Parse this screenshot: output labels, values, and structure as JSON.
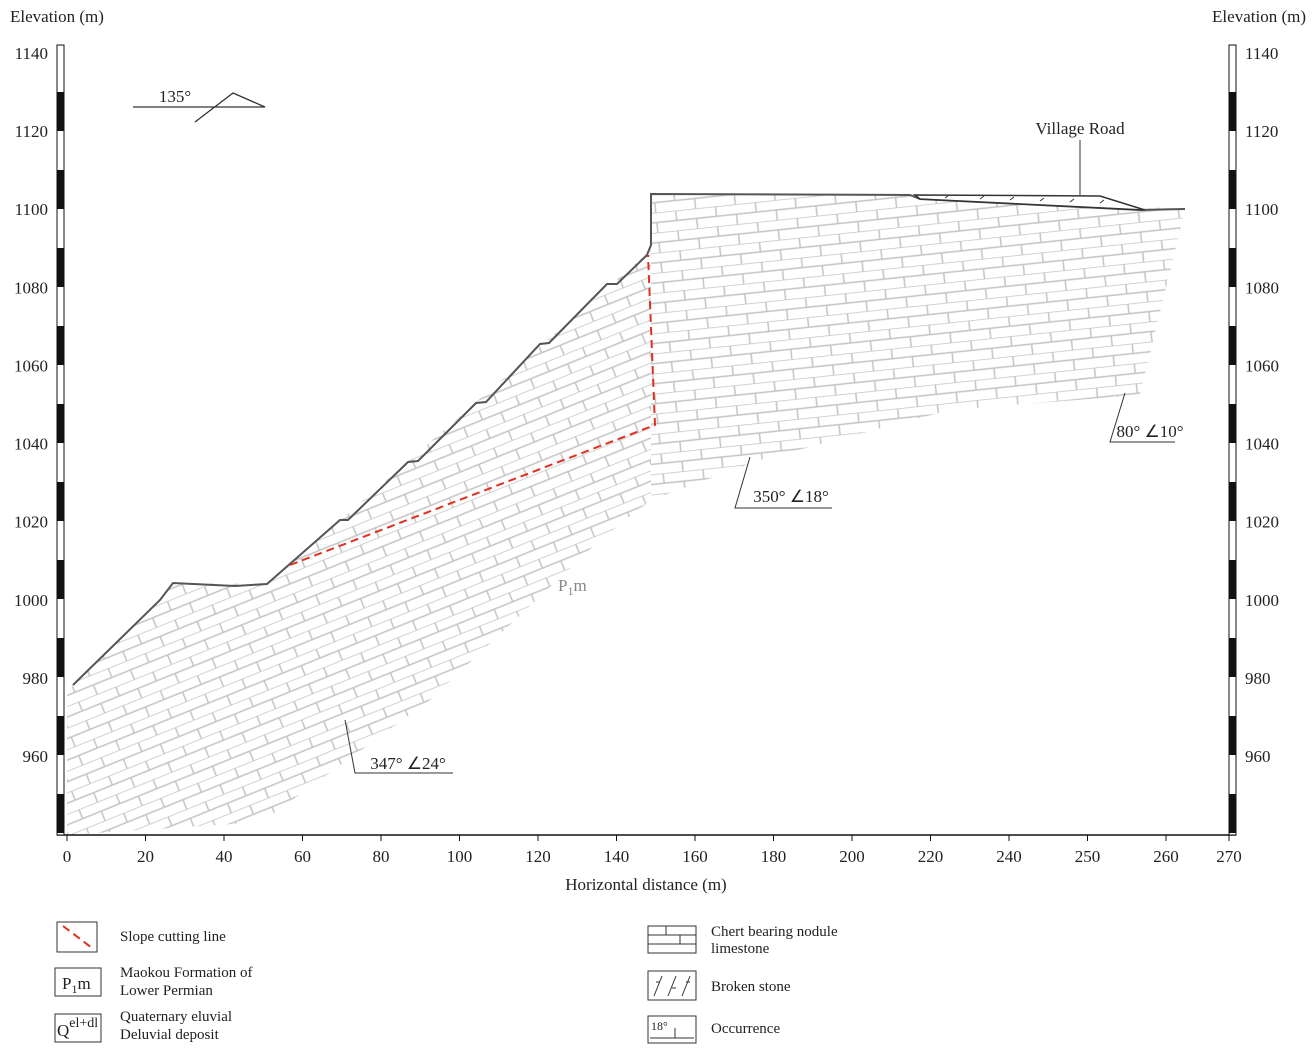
{
  "axes": {
    "y_left_title": "Elevation (m)",
    "y_right_title": "Elevation (m)",
    "x_title": "Horizontal distance (m)",
    "yticks": [
      1140,
      1120,
      1100,
      1080,
      1060,
      1040,
      1020,
      1000,
      980,
      960
    ],
    "xticks": [
      0,
      20,
      40,
      60,
      80,
      100,
      120,
      140,
      160,
      180,
      200,
      220,
      240,
      250,
      260,
      270
    ]
  },
  "annotations": {
    "strike": "135°",
    "village_road": "Village Road",
    "occ_right": "80° ∠10°",
    "occ_middle": "350° ∠18°",
    "occ_left": "347° ∠24°",
    "formation": {
      "base": "P",
      "sub": "1",
      "rest": "m"
    }
  },
  "legend": {
    "slope_cutting": {
      "label": "Slope cutting line"
    },
    "maokou": {
      "symbol": {
        "base": "P",
        "sub": "1",
        "rest": "m"
      },
      "label": [
        "Maokou Formation of",
        "Lower Permian"
      ]
    },
    "quaternary": {
      "symbol": {
        "base": "Q",
        "sup": "el+dl"
      },
      "label": [
        "Quaternary eluvial",
        "Deluvial deposit"
      ]
    },
    "chert": {
      "label": [
        "Chert bearing nodule",
        "limestone"
      ]
    },
    "broken": {
      "label": "Broken stone"
    },
    "occurrence": {
      "symbol": "18°",
      "label": "Occurrence"
    }
  }
}
